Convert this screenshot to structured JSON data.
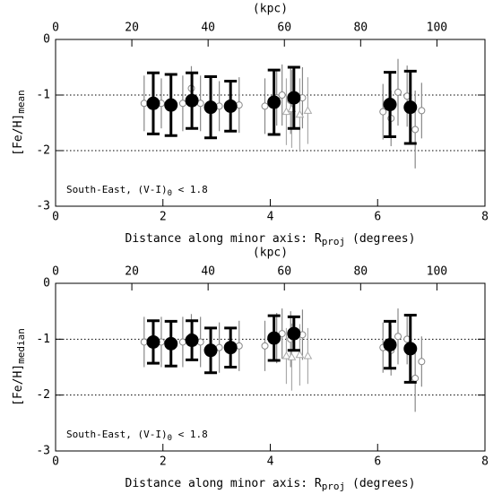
{
  "chart_data": [
    {
      "type": "scatter",
      "x2_label": "(kpc)",
      "x2lim": [
        0,
        112.6
      ],
      "x2ticks": [
        0,
        20,
        40,
        60,
        80,
        100
      ],
      "xlim": [
        0,
        8
      ],
      "xticks": [
        0,
        2,
        4,
        6,
        8
      ],
      "ylim": [
        -3,
        0
      ],
      "yticks": [
        0,
        -1,
        -2,
        -3
      ],
      "reference_lines": [
        -1,
        -2
      ],
      "y_label": "[Fe/H]",
      "y_label_sub": "mean",
      "x_label": "Distance along minor axis: R",
      "x_label_sub": "proj",
      "x_label_end": " (degrees)",
      "annotation": "South-East, (V-I)",
      "annotation_sub": "0",
      "annotation_end": " < 1.8",
      "series": [
        {
          "marker": "open-circle",
          "color": "#888888",
          "x": [
            1.65,
            1.97,
            2.37,
            2.53,
            2.7,
            3.05,
            3.42,
            3.9,
            4.12,
            4.22,
            4.38,
            4.6,
            6.1,
            6.25,
            6.38,
            6.55,
            6.7,
            6.82
          ],
          "values": [
            -1.15,
            -1.15,
            -1.15,
            -0.88,
            -1.15,
            -1.2,
            -1.18,
            -1.2,
            -1.05,
            -1.0,
            -1.1,
            -1.05,
            -1.3,
            -1.42,
            -0.95,
            -1.02,
            -1.62,
            -1.28
          ],
          "errors": [
            0.5,
            0.45,
            0.5,
            0.4,
            0.5,
            0.45,
            0.5,
            0.5,
            0.5,
            0.55,
            0.6,
            0.55,
            0.5,
            0.5,
            0.6,
            0.55,
            0.7,
            0.5
          ]
        },
        {
          "marker": "open-triangle",
          "color": "#aaaaaa",
          "x": [
            4.3,
            4.4,
            4.55,
            4.7
          ],
          "values": [
            -1.3,
            -1.25,
            -1.35,
            -1.28
          ],
          "errors": [
            0.6,
            0.7,
            0.65,
            0.6
          ]
        },
        {
          "marker": "filled-circle",
          "color": "#000000",
          "x": [
            1.82,
            2.15,
            2.54,
            2.89,
            3.26,
            4.07,
            4.44,
            6.23,
            6.61
          ],
          "values": [
            -1.15,
            -1.18,
            -1.1,
            -1.22,
            -1.2,
            -1.13,
            -1.05,
            -1.17,
            -1.22
          ],
          "errors": [
            0.55,
            0.55,
            0.5,
            0.55,
            0.45,
            0.58,
            0.55,
            0.58,
            0.65
          ]
        }
      ]
    },
    {
      "type": "scatter",
      "x2_label": "(kpc)",
      "x2lim": [
        0,
        112.6
      ],
      "x2ticks": [
        0,
        20,
        40,
        60,
        80,
        100
      ],
      "xlim": [
        0,
        8
      ],
      "xticks": [
        0,
        2,
        4,
        6,
        8
      ],
      "ylim": [
        -3,
        0
      ],
      "yticks": [
        0,
        -1,
        -2,
        -3
      ],
      "reference_lines": [
        -1,
        -2
      ],
      "y_label": "[Fe/H]",
      "y_label_sub": "median",
      "x_label": "Distance along minor axis: R",
      "x_label_sub": "proj",
      "x_label_end": " (degrees)",
      "annotation": "South-East, (V-I)",
      "annotation_sub": "0",
      "annotation_end": " < 1.8",
      "series": [
        {
          "marker": "open-circle",
          "color": "#888888",
          "x": [
            1.65,
            1.97,
            2.37,
            2.53,
            2.7,
            3.05,
            3.42,
            3.9,
            4.12,
            4.22,
            4.38,
            4.6,
            6.1,
            6.25,
            6.38,
            6.55,
            6.7,
            6.82
          ],
          "values": [
            -1.05,
            -1.05,
            -1.05,
            -0.95,
            -1.05,
            -1.15,
            -1.12,
            -1.12,
            -0.98,
            -0.9,
            -1.0,
            -0.92,
            -1.15,
            -1.2,
            -0.95,
            -1.0,
            -1.7,
            -1.4
          ],
          "errors": [
            0.45,
            0.45,
            0.45,
            0.4,
            0.45,
            0.45,
            0.45,
            0.45,
            0.45,
            0.45,
            0.5,
            0.45,
            0.45,
            0.45,
            0.5,
            0.45,
            0.6,
            0.45
          ]
        },
        {
          "marker": "open-triangle",
          "color": "#aaaaaa",
          "x": [
            4.3,
            4.4,
            4.55,
            4.7
          ],
          "values": [
            -1.3,
            -1.32,
            -1.28,
            -1.3
          ],
          "errors": [
            0.5,
            0.6,
            0.55,
            0.5
          ]
        },
        {
          "marker": "filled-circle",
          "color": "#000000",
          "x": [
            1.82,
            2.15,
            2.54,
            2.89,
            3.26,
            4.07,
            4.44,
            6.23,
            6.61
          ],
          "values": [
            -1.05,
            -1.08,
            -1.02,
            -1.2,
            -1.15,
            -0.98,
            -0.9,
            -1.1,
            -1.17
          ],
          "errors": [
            0.38,
            0.4,
            0.35,
            0.4,
            0.35,
            0.4,
            0.3,
            0.42,
            0.6
          ]
        }
      ]
    }
  ]
}
